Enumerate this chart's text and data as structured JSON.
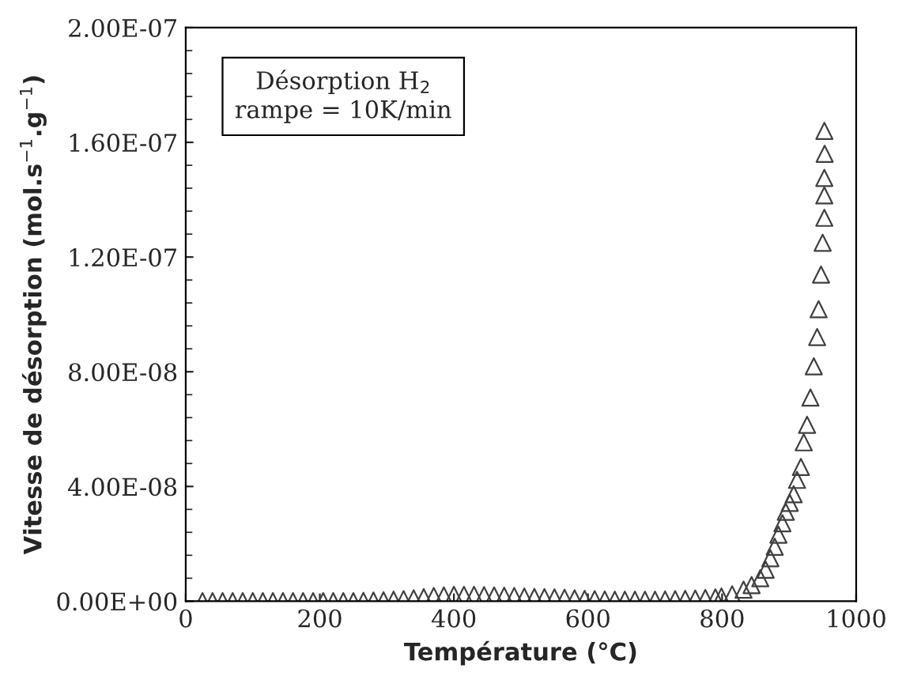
{
  "chart_data": {
    "type": "scatter",
    "xlabel": "Température (°C)",
    "ylabel": "Vitesse de désorption (mol.s$^{−1}$.g$^{−1}$)",
    "annotations": [
      "Désorption H$_{2}$\nrampe = 10K/min"
    ],
    "xlim": [
      0,
      1000
    ],
    "xticks": [
      0,
      200,
      400,
      600,
      800,
      1000
    ],
    "ylim": [
      0,
      2e-07
    ],
    "yticks": [
      {
        "value": 0,
        "label": "0.00E+00"
      },
      {
        "value": 4e-08,
        "label": "4.00E-08"
      },
      {
        "value": 8e-08,
        "label": "8.00E-08"
      },
      {
        "value": 1.2e-07,
        "label": "1.20E-07"
      },
      {
        "value": 1.6e-07,
        "label": "1.60E-07"
      },
      {
        "value": 2e-07,
        "label": "2.00E-07"
      }
    ],
    "marker": "triangle",
    "grid": false,
    "legend": false,
    "series": [
      {
        "color": "#404040",
        "x": [
          25,
          40,
          55,
          70,
          85,
          100,
          115,
          130,
          145,
          160,
          175,
          190,
          205,
          220,
          235,
          250,
          265,
          280,
          295,
          310,
          325,
          340,
          355,
          370,
          385,
          400,
          415,
          430,
          445,
          460,
          475,
          490,
          505,
          520,
          535,
          550,
          565,
          580,
          595,
          610,
          625,
          640,
          655,
          670,
          685,
          700,
          715,
          730,
          745,
          760,
          775,
          790,
          799,
          815,
          832,
          844,
          857,
          865,
          872,
          878.5,
          884,
          890,
          895,
          901,
          906.8,
          911.8,
          917.6,
          921.8,
          926.8,
          931.8,
          936.8,
          941.8,
          944,
          947.6,
          950,
          952.5,
          952.5,
          952.5,
          953,
          952.6
        ],
        "values": [
          0,
          0,
          0,
          0,
          0,
          0,
          0,
          0,
          0,
          0,
          0,
          0,
          0,
          0,
          0,
          0,
          1e-10,
          2e-10,
          3e-10,
          5e-10,
          7e-10,
          1e-09,
          1.4e-09,
          1.8e-09,
          2e-09,
          2.2e-09,
          2.2e-09,
          2.2e-09,
          2.1e-09,
          2e-09,
          1.9e-09,
          1.8e-09,
          1.6e-09,
          1.5e-09,
          1.4e-09,
          1.3e-09,
          1.2e-09,
          1e-09,
          8e-10,
          7e-10,
          6e-10,
          5e-10,
          5e-10,
          5e-10,
          5e-10,
          5e-10,
          6e-10,
          7e-10,
          8e-10,
          9e-10,
          1.1e-09,
          1.3e-09,
          1.6e-09,
          2.4e-09,
          4e-09,
          5.6e-09,
          8e-09,
          1.1e-08,
          1.5e-08,
          1.9e-08,
          2.32e-08,
          2.72e-08,
          3.12e-08,
          3.43e-08,
          3.73e-08,
          4.23e-08,
          4.68e-08,
          5.54e-08,
          6.15e-08,
          7.1e-08,
          8.19e-08,
          9.21e-08,
          1.018e-07,
          1.139e-07,
          1.25e-07,
          1.337e-07,
          1.415e-07,
          1.476e-07,
          1.56e-07,
          1.64e-07
        ]
      }
    ]
  }
}
